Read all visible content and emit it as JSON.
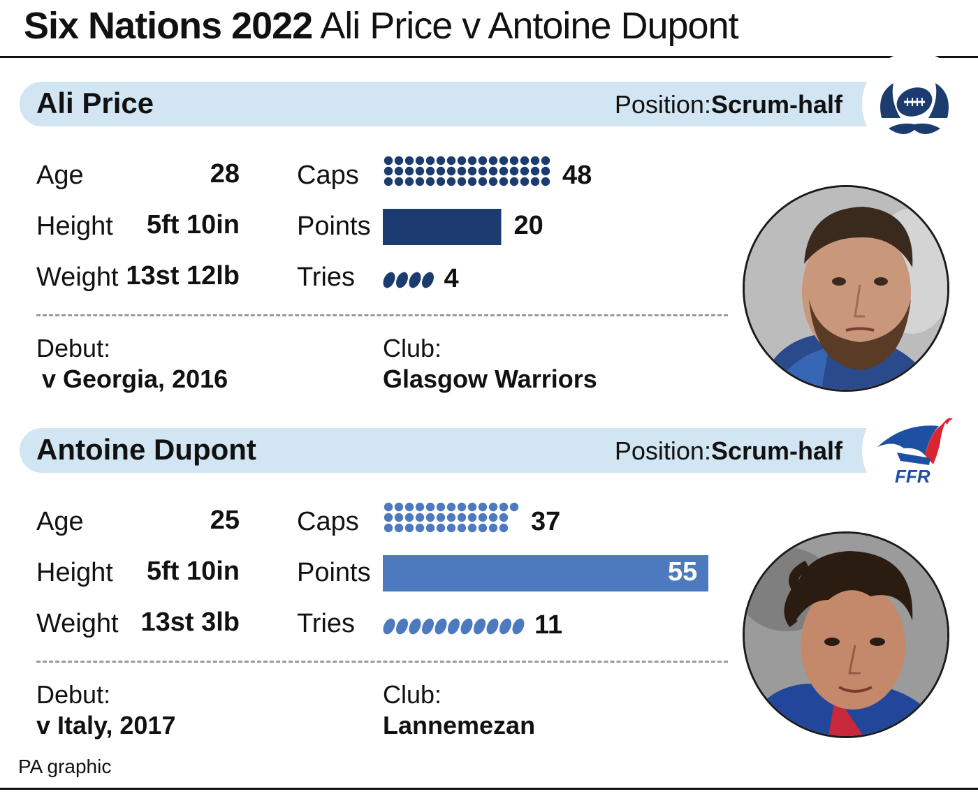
{
  "title": {
    "bold": "Six Nations 2022",
    "rest": "Ali Price v Antoine Dupont"
  },
  "position_label": "Position:",
  "labels": {
    "age": "Age",
    "height": "Height",
    "weight": "Weight",
    "caps": "Caps",
    "points": "Points",
    "tries": "Tries",
    "debut": "Debut:",
    "club": "Club:"
  },
  "players": [
    {
      "name": "Ali Price",
      "position": "Scrum-half",
      "age": "28",
      "height": "5ft 10in",
      "weight": "13st 12lb",
      "caps": 48,
      "points": 20,
      "tries": 4,
      "debut": "v Georgia, 2016",
      "club": "Glasgow Warriors",
      "color": "#1c3b6e",
      "logo_icon": "scotland-thistle-logo-icon"
    },
    {
      "name": "Antoine Dupont",
      "position": "Scrum-half",
      "age": "25",
      "height": "5ft 10in",
      "weight": "13st 3lb",
      "caps": 37,
      "points": 55,
      "tries": 11,
      "debut": "v Italy, 2017",
      "club": "Lannemezan",
      "color": "#4d7abf",
      "logo_icon": "ffr-rooster-logo-icon",
      "logo_text": "FFR"
    }
  ],
  "max_points": 55,
  "source": "PA graphic"
}
